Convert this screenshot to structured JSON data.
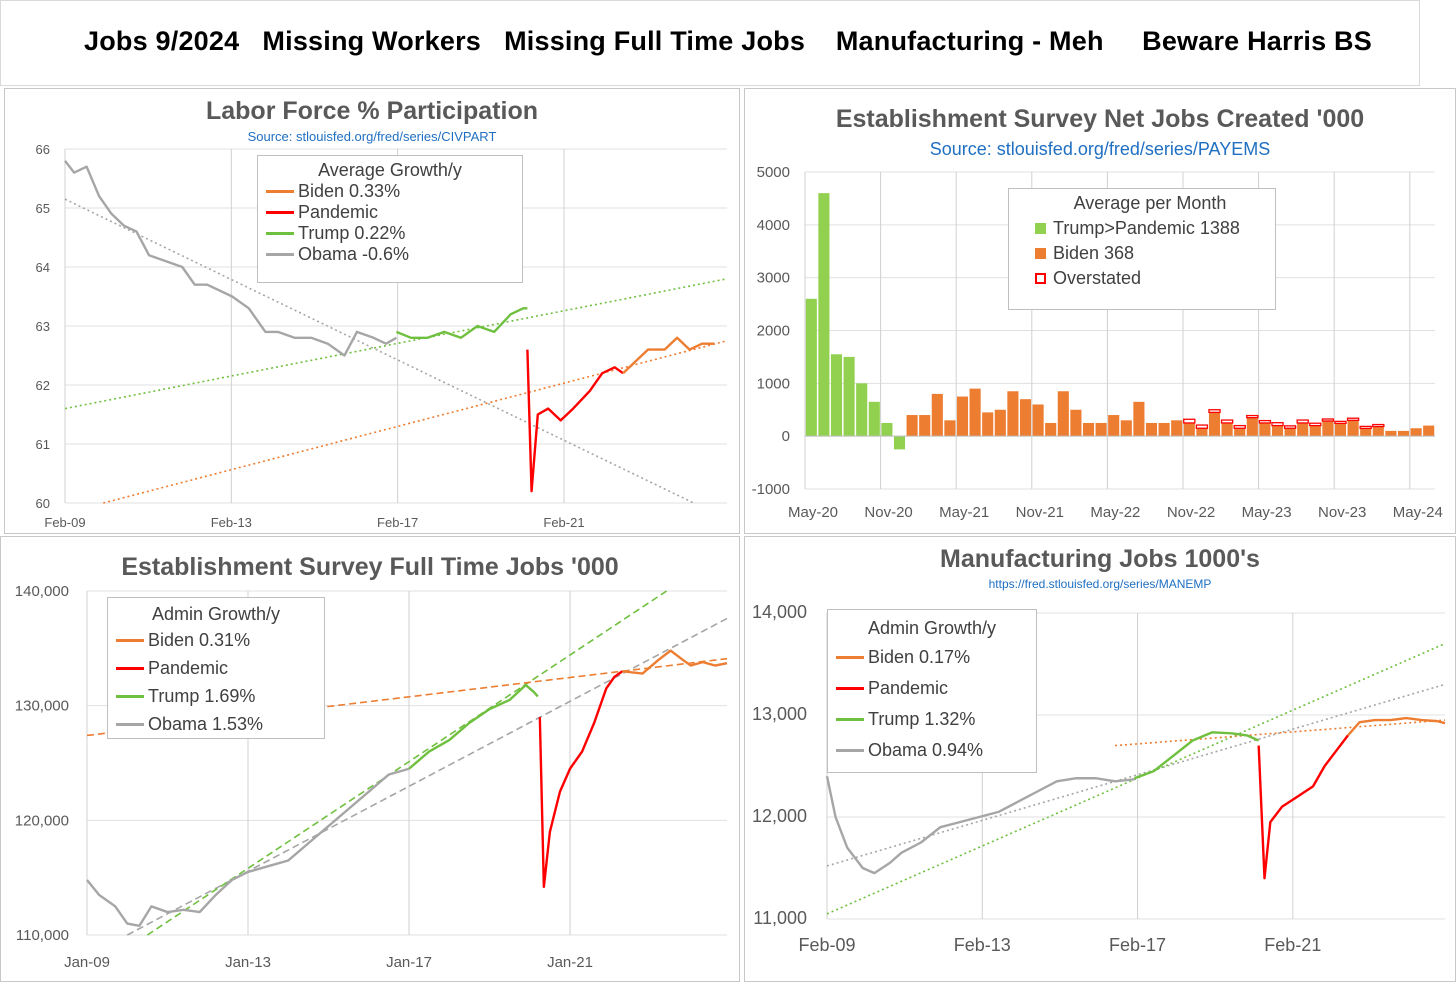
{
  "banner": {
    "title": "Jobs 9/2024   Missing Workers   Missing Full Time Jobs    Manufacturing - Meh     Beware Harris BS"
  },
  "panels": {
    "lfp": {
      "title": "Labor Force % Participation",
      "source": "Source: stlouisfed.org/fred/series/CIVPART"
    },
    "net": {
      "title": "Establishment Survey Net Jobs Created '000",
      "source": "Source: stlouisfed.org/fred/series/PAYEMS"
    },
    "ft": {
      "title": "Establishment Survey Full Time Jobs '000"
    },
    "mfg": {
      "title": "Manufacturing Jobs 1000's",
      "source": "https://fred.stlouisfed.org/series/MANEMP"
    }
  },
  "colors": {
    "biden": "#ed7d31",
    "pandemic": "#ff0000",
    "trump": "#70c040",
    "obama": "#a6a6a6",
    "trump_bar": "#92d050",
    "source_link": "#1f6fc2"
  },
  "chart_data": [
    {
      "id": "lfp",
      "type": "line",
      "title": "Labor Force % Participation",
      "subtitle": "Source: stlouisfed.org/fred/series/CIVPART",
      "x_ticks": [
        "Feb-09",
        "Feb-13",
        "Feb-17",
        "Feb-21"
      ],
      "xlim": [
        2009.08,
        2025.0
      ],
      "ylim": [
        60,
        66
      ],
      "y_ticks": [
        "60",
        "61",
        "62",
        "63",
        "64",
        "65",
        "66"
      ],
      "grid": true,
      "legend_position": "top-center",
      "legend": {
        "title": "Average Growth/y",
        "items": [
          "Biden 0.33%",
          "Pandemic",
          "Trump 0.22%",
          "Obama -0.6%"
        ]
      },
      "series": [
        {
          "name": "Obama",
          "color": "#a6a6a6",
          "points": [
            [
              2009.08,
              65.8
            ],
            [
              2009.3,
              65.6
            ],
            [
              2009.6,
              65.7
            ],
            [
              2009.9,
              65.2
            ],
            [
              2010.2,
              64.9
            ],
            [
              2010.5,
              64.7
            ],
            [
              2010.8,
              64.6
            ],
            [
              2011.1,
              64.2
            ],
            [
              2011.5,
              64.1
            ],
            [
              2011.9,
              64.0
            ],
            [
              2012.2,
              63.7
            ],
            [
              2012.5,
              63.7
            ],
            [
              2012.8,
              63.6
            ],
            [
              2013.1,
              63.5
            ],
            [
              2013.5,
              63.3
            ],
            [
              2013.9,
              62.9
            ],
            [
              2014.2,
              62.9
            ],
            [
              2014.6,
              62.8
            ],
            [
              2015.0,
              62.8
            ],
            [
              2015.4,
              62.7
            ],
            [
              2015.8,
              62.5
            ],
            [
              2016.1,
              62.9
            ],
            [
              2016.5,
              62.8
            ],
            [
              2016.8,
              62.7
            ],
            [
              2017.05,
              62.8
            ]
          ]
        },
        {
          "name": "Trump",
          "color": "#70c040",
          "points": [
            [
              2017.05,
              62.9
            ],
            [
              2017.4,
              62.8
            ],
            [
              2017.8,
              62.8
            ],
            [
              2018.2,
              62.9
            ],
            [
              2018.6,
              62.8
            ],
            [
              2019.0,
              63.0
            ],
            [
              2019.4,
              62.9
            ],
            [
              2019.8,
              63.2
            ],
            [
              2020.1,
              63.3
            ],
            [
              2020.2,
              63.3
            ]
          ]
        },
        {
          "name": "Pandemic",
          "color": "#ff0000",
          "points": [
            [
              2020.2,
              62.6
            ],
            [
              2020.3,
              60.2
            ],
            [
              2020.45,
              61.5
            ],
            [
              2020.7,
              61.6
            ],
            [
              2021.0,
              61.4
            ],
            [
              2021.3,
              61.6
            ],
            [
              2021.7,
              61.9
            ],
            [
              2022.0,
              62.2
            ],
            [
              2022.3,
              62.3
            ],
            [
              2022.5,
              62.2
            ]
          ]
        },
        {
          "name": "Biden",
          "color": "#ed7d31",
          "points": [
            [
              2022.5,
              62.2
            ],
            [
              2022.8,
              62.4
            ],
            [
              2023.1,
              62.6
            ],
            [
              2023.5,
              62.6
            ],
            [
              2023.8,
              62.8
            ],
            [
              2024.1,
              62.6
            ],
            [
              2024.4,
              62.7
            ],
            [
              2024.7,
              62.7
            ]
          ]
        }
      ],
      "trendlines": [
        {
          "name": "Obama trend",
          "color": "#a6a6a6",
          "points": [
            [
              2009.08,
              65.15
            ],
            [
              2024.2,
              60.0
            ]
          ]
        },
        {
          "name": "Trump trend",
          "color": "#70c040",
          "points": [
            [
              2009.08,
              61.6
            ],
            [
              2025.0,
              63.8
            ]
          ]
        },
        {
          "name": "Biden trend",
          "color": "#ed7d31",
          "points": [
            [
              2010.0,
              60.0
            ],
            [
              2025.0,
              62.75
            ]
          ]
        }
      ]
    },
    {
      "id": "net",
      "type": "bar",
      "title": "Establishment Survey Net Jobs Created '000",
      "subtitle": "Source: stlouisfed.org/fred/series/PAYEMS",
      "x_ticks": [
        "May-20",
        "Nov-20",
        "May-21",
        "Nov-21",
        "May-22",
        "Nov-22",
        "May-23",
        "Nov-23",
        "May-24"
      ],
      "ylim": [
        -1000,
        5000
      ],
      "y_ticks": [
        "-1000",
        "0",
        "1000",
        "2000",
        "3000",
        "4000",
        "5000"
      ],
      "grid": true,
      "legend_position": "top-right",
      "legend": {
        "title": "Average per Month",
        "items": [
          "Trump>Pandemic 1388",
          "Biden 368",
          "Overstated"
        ]
      },
      "trump_values": [
        2600,
        4600,
        1550,
        1500,
        1000,
        650,
        250,
        -250
      ],
      "biden_values": [
        400,
        400,
        800,
        300,
        750,
        900,
        450,
        500,
        850,
        700,
        600,
        250,
        850,
        500,
        250,
        250,
        400,
        300,
        650,
        250,
        250,
        300,
        250,
        150,
        450,
        250,
        150,
        350,
        250,
        200,
        150,
        250,
        200,
        300,
        250,
        300,
        150,
        200,
        100,
        100,
        150,
        200
      ],
      "overstated": [
        [
          30,
          70
        ],
        [
          31,
          60
        ],
        [
          32,
          50
        ],
        [
          33,
          55
        ],
        [
          34,
          50
        ],
        [
          35,
          40
        ],
        [
          36,
          45
        ],
        [
          37,
          55
        ],
        [
          38,
          45
        ],
        [
          39,
          55
        ],
        [
          40,
          45
        ],
        [
          41,
          25
        ],
        [
          42,
          30
        ],
        [
          43,
          40
        ],
        [
          44,
          35
        ],
        [
          45,
          20
        ]
      ]
    },
    {
      "id": "ft",
      "type": "line",
      "title": "Establishment Survey Full Time Jobs '000",
      "x_ticks": [
        "Jan-09",
        "Jan-13",
        "Jan-17",
        "Jan-21"
      ],
      "xlim": [
        2009.0,
        2024.9
      ],
      "ylim": [
        110000,
        140000
      ],
      "y_ticks": [
        "110,000",
        "120,000",
        "130,000",
        "140,000"
      ],
      "grid": true,
      "legend_position": "top-left",
      "legend": {
        "title": "Admin Growth/y",
        "items": [
          "Biden 0.31%",
          "Pandemic",
          "Trump 1.69%",
          "Obama 1.53%"
        ]
      },
      "series": [
        {
          "name": "Obama",
          "color": "#a6a6a6",
          "points": [
            [
              2009.0,
              114800
            ],
            [
              2009.3,
              113500
            ],
            [
              2009.7,
              112500
            ],
            [
              2010.0,
              111000
            ],
            [
              2010.3,
              110800
            ],
            [
              2010.6,
              112500
            ],
            [
              2011.0,
              112000
            ],
            [
              2011.4,
              112200
            ],
            [
              2011.8,
              112000
            ],
            [
              2012.2,
              113500
            ],
            [
              2012.6,
              114800
            ],
            [
              2013.0,
              115500
            ],
            [
              2013.5,
              116000
            ],
            [
              2014.0,
              116500
            ],
            [
              2014.5,
              118000
            ],
            [
              2015.0,
              119500
            ],
            [
              2015.5,
              121000
            ],
            [
              2016.0,
              122500
            ],
            [
              2016.5,
              124000
            ],
            [
              2017.0,
              124500
            ]
          ]
        },
        {
          "name": "Trump",
          "color": "#70c040",
          "points": [
            [
              2017.0,
              124500
            ],
            [
              2017.5,
              126000
            ],
            [
              2018.0,
              127000
            ],
            [
              2018.5,
              128500
            ],
            [
              2019.0,
              129700
            ],
            [
              2019.5,
              130500
            ],
            [
              2019.9,
              131800
            ],
            [
              2020.1,
              131200
            ],
            [
              2020.2,
              130800
            ]
          ]
        },
        {
          "name": "Pandemic",
          "color": "#ff0000",
          "points": [
            [
              2020.25,
              129000
            ],
            [
              2020.35,
              114200
            ],
            [
              2020.5,
              119000
            ],
            [
              2020.75,
              122500
            ],
            [
              2021.0,
              124500
            ],
            [
              2021.3,
              126000
            ],
            [
              2021.6,
              128500
            ],
            [
              2021.9,
              131500
            ],
            [
              2022.1,
              132500
            ],
            [
              2022.3,
              133000
            ]
          ]
        },
        {
          "name": "Biden",
          "color": "#ed7d31",
          "points": [
            [
              2022.3,
              133000
            ],
            [
              2022.8,
              132800
            ],
            [
              2023.2,
              134000
            ],
            [
              2023.5,
              134800
            ],
            [
              2023.8,
              134000
            ],
            [
              2024.0,
              133500
            ],
            [
              2024.3,
              133800
            ],
            [
              2024.6,
              133500
            ],
            [
              2024.9,
              133700
            ]
          ]
        }
      ],
      "trendlines": [
        {
          "name": "Obama trend",
          "color": "#a6a6a6",
          "points": [
            [
              2010.0,
              110000
            ],
            [
              2024.9,
              137600
            ]
          ]
        },
        {
          "name": "Trump trend",
          "color": "#70c040",
          "points": [
            [
              2010.5,
              110000
            ],
            [
              2023.4,
              140000
            ]
          ]
        },
        {
          "name": "Biden trend",
          "color": "#ed7d31",
          "points": [
            [
              2009.0,
              127400
            ],
            [
              2024.9,
              134100
            ]
          ]
        }
      ]
    },
    {
      "id": "mfg",
      "type": "line",
      "title": "Manufacturing Jobs 1000's",
      "subtitle": "https://fred.stlouisfed.org/series/MANEMP",
      "x_ticks": [
        "Feb-09",
        "Feb-13",
        "Feb-17",
        "Feb-21"
      ],
      "xlim": [
        2009.08,
        2025.0
      ],
      "ylim": [
        11000,
        14000
      ],
      "y_ticks": [
        "11,000",
        "12,000",
        "13,000",
        "14,000"
      ],
      "grid": true,
      "legend_position": "top-left",
      "legend": {
        "title": "Admin  Growth/y",
        "items": [
          "Biden 0.17%",
          "Pandemic",
          "Trump 1.32%",
          "Obama 0.94%"
        ]
      },
      "series": [
        {
          "name": "Obama",
          "color": "#a6a6a6",
          "points": [
            [
              2009.08,
              12400
            ],
            [
              2009.3,
              12000
            ],
            [
              2009.6,
              11700
            ],
            [
              2010.0,
              11500
            ],
            [
              2010.3,
              11450
            ],
            [
              2010.7,
              11550
            ],
            [
              2011.0,
              11650
            ],
            [
              2011.5,
              11750
            ],
            [
              2012.0,
              11900
            ],
            [
              2012.5,
              11950
            ],
            [
              2013.0,
              12000
            ],
            [
              2013.5,
              12050
            ],
            [
              2014.0,
              12150
            ],
            [
              2014.5,
              12250
            ],
            [
              2015.0,
              12350
            ],
            [
              2015.5,
              12380
            ],
            [
              2016.0,
              12380
            ],
            [
              2016.5,
              12350
            ],
            [
              2017.0,
              12370
            ]
          ]
        },
        {
          "name": "Trump",
          "color": "#70c040",
          "points": [
            [
              2017.0,
              12380
            ],
            [
              2017.5,
              12450
            ],
            [
              2018.0,
              12600
            ],
            [
              2018.5,
              12750
            ],
            [
              2019.0,
              12830
            ],
            [
              2019.5,
              12820
            ],
            [
              2019.9,
              12800
            ],
            [
              2020.2,
              12750
            ]
          ]
        },
        {
          "name": "Pandemic",
          "color": "#ff0000",
          "points": [
            [
              2020.2,
              12700
            ],
            [
              2020.35,
              11400
            ],
            [
              2020.5,
              11950
            ],
            [
              2020.8,
              12100
            ],
            [
              2021.2,
              12200
            ],
            [
              2021.6,
              12300
            ],
            [
              2021.9,
              12500
            ],
            [
              2022.2,
              12650
            ],
            [
              2022.5,
              12800
            ]
          ]
        },
        {
          "name": "Biden",
          "color": "#ed7d31",
          "points": [
            [
              2022.5,
              12800
            ],
            [
              2022.8,
              12930
            ],
            [
              2023.2,
              12950
            ],
            [
              2023.6,
              12950
            ],
            [
              2024.0,
              12970
            ],
            [
              2024.4,
              12950
            ],
            [
              2024.8,
              12940
            ],
            [
              2025.0,
              12920
            ]
          ]
        }
      ],
      "trendlines": [
        {
          "name": "Obama trend",
          "color": "#a6a6a6",
          "points": [
            [
              2009.08,
              11520
            ],
            [
              2025.0,
              13300
            ]
          ]
        },
        {
          "name": "Trump trend",
          "color": "#70c040",
          "points": [
            [
              2009.08,
              11050
            ],
            [
              2025.0,
              13700
            ]
          ]
        },
        {
          "name": "Biden trend",
          "color": "#ed7d31",
          "points": [
            [
              2016.5,
              12700
            ],
            [
              2025.0,
              12950
            ]
          ]
        }
      ]
    }
  ]
}
